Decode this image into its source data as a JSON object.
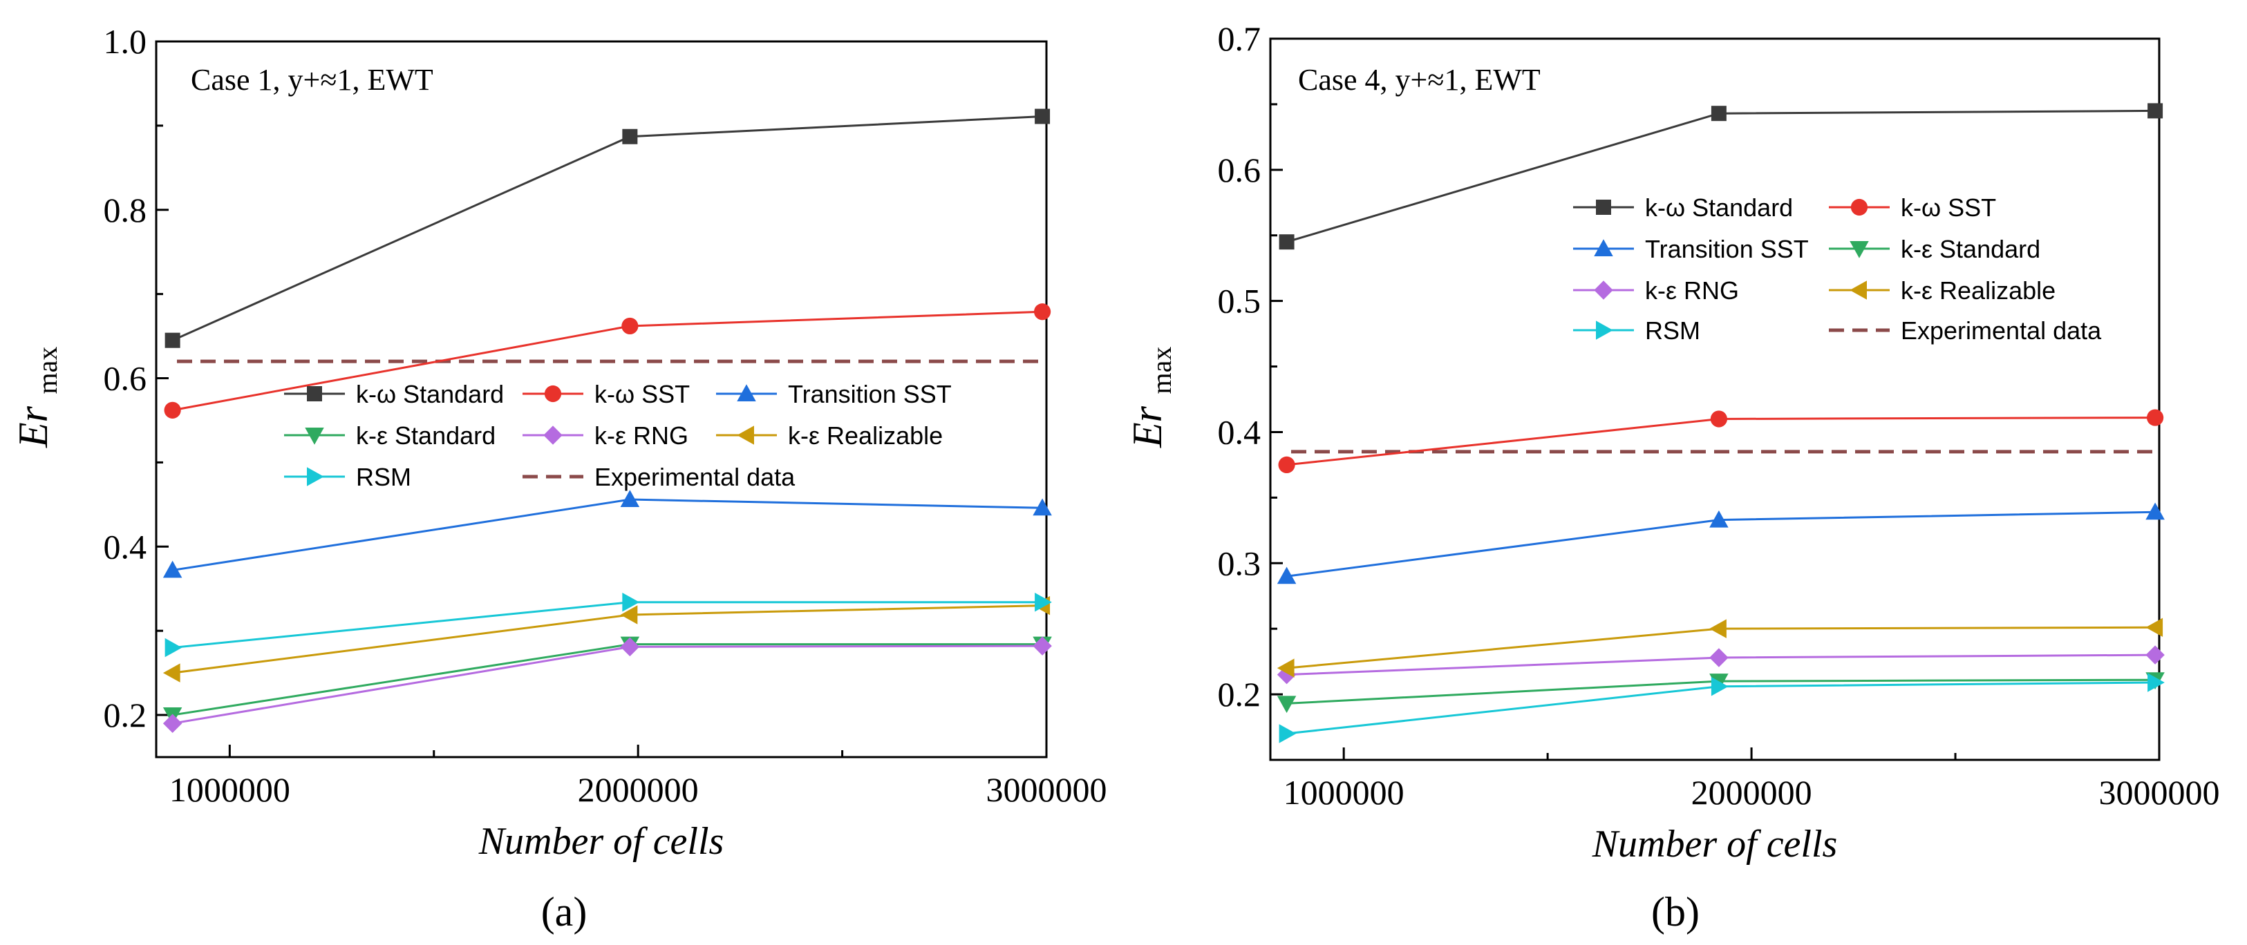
{
  "chart_data": [
    {
      "type": "line",
      "panel_label": "(a)",
      "annotation": "Case 1, y+≈1, EWT",
      "xlabel": "Number of cells",
      "ylabel": "Er",
      "ylabel_sub": "max",
      "xlim": [
        820000,
        3000000
      ],
      "ylim": [
        0.15,
        1.0
      ],
      "xticks": [
        1000000,
        2000000,
        3000000
      ],
      "xtick_labels": [
        "1000000",
        "2000000",
        "3000000"
      ],
      "yticks": [
        0.2,
        0.4,
        0.6,
        0.8,
        1.0
      ],
      "ytick_labels": [
        "0.2",
        "0.4",
        "0.6",
        "0.8",
        "1.0"
      ],
      "legend_position": "middle",
      "x": [
        860000,
        1980000,
        2990000
      ],
      "series": [
        {
          "name": "k-ω Standard",
          "color": "#3a3a3a",
          "marker": "square",
          "values": [
            0.645,
            0.887,
            0.911
          ]
        },
        {
          "name": "k-ω SST",
          "color": "#e8322b",
          "marker": "circle",
          "values": [
            0.562,
            0.662,
            0.679
          ]
        },
        {
          "name": "Transition SST",
          "color": "#1f6fdc",
          "marker": "triangle-up",
          "values": [
            0.372,
            0.456,
            0.446
          ]
        },
        {
          "name": "k-ε Standard",
          "color": "#2faa5f",
          "marker": "triangle-down",
          "values": [
            0.2,
            0.284,
            0.284
          ]
        },
        {
          "name": "k-ε RNG",
          "color": "#b56be0",
          "marker": "diamond",
          "values": [
            0.19,
            0.281,
            0.282
          ]
        },
        {
          "name": "k-ε Realizable",
          "color": "#c99a0a",
          "marker": "triangle-left",
          "values": [
            0.25,
            0.319,
            0.33
          ]
        },
        {
          "name": "RSM",
          "color": "#17c7d6",
          "marker": "triangle-right",
          "values": [
            0.28,
            0.334,
            0.334
          ]
        }
      ],
      "reference": {
        "name": "Experimental data",
        "color": "#8b4a4a",
        "value": 0.62
      }
    },
    {
      "type": "line",
      "panel_label": "(b)",
      "annotation": "Case 4, y+≈1, EWT",
      "xlabel": "Number of cells",
      "ylabel": "Er",
      "ylabel_sub": "max",
      "xlim": [
        820000,
        3000000
      ],
      "ylim": [
        0.15,
        0.7
      ],
      "xticks": [
        1000000,
        2000000,
        3000000
      ],
      "xtick_labels": [
        "1000000",
        "2000000",
        "3000000"
      ],
      "yticks": [
        0.2,
        0.3,
        0.4,
        0.5,
        0.6,
        0.7
      ],
      "ytick_labels": [
        "0.2",
        "0.3",
        "0.4",
        "0.5",
        "0.6",
        "0.7"
      ],
      "legend_position": "upper-middle",
      "x": [
        860000,
        1920000,
        2990000
      ],
      "series": [
        {
          "name": "k-ω Standard",
          "color": "#3a3a3a",
          "marker": "square",
          "values": [
            0.545,
            0.643,
            0.645
          ]
        },
        {
          "name": "k-ω SST",
          "color": "#e8322b",
          "marker": "circle",
          "values": [
            0.375,
            0.41,
            0.411
          ]
        },
        {
          "name": "Transition SST",
          "color": "#1f6fdc",
          "marker": "triangle-up",
          "values": [
            0.29,
            0.333,
            0.339
          ]
        },
        {
          "name": "k-ε Standard",
          "color": "#2faa5f",
          "marker": "triangle-down",
          "values": [
            0.193,
            0.21,
            0.211
          ]
        },
        {
          "name": "k-ε RNG",
          "color": "#b56be0",
          "marker": "diamond",
          "values": [
            0.215,
            0.228,
            0.23
          ]
        },
        {
          "name": "k-ε Realizable",
          "color": "#c99a0a",
          "marker": "triangle-left",
          "values": [
            0.22,
            0.25,
            0.251
          ]
        },
        {
          "name": "RSM",
          "color": "#17c7d6",
          "marker": "triangle-right",
          "values": [
            0.17,
            0.206,
            0.209
          ]
        }
      ],
      "reference": {
        "name": "Experimental data",
        "color": "#8b4a4a",
        "value": 0.385
      }
    }
  ]
}
